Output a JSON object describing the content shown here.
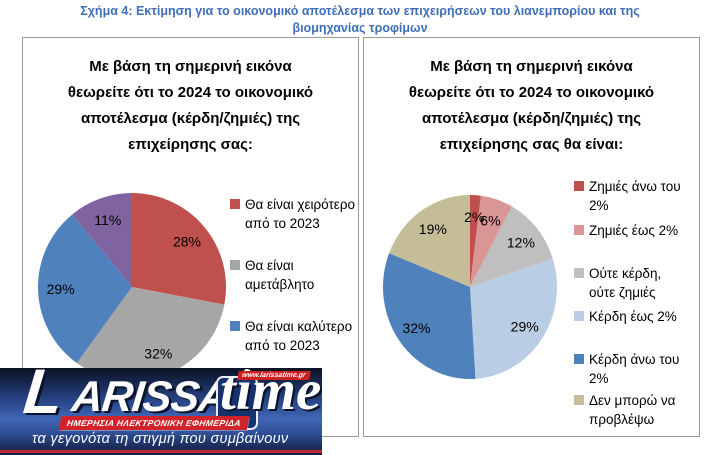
{
  "page_title_lines": [
    "Σχήμα 4: Εκτίμηση για το οικονομικό αποτέλεσμα των επιχειρήσεων του λιανεμπορίου και της",
    "βιομηχανίας τροφίμων"
  ],
  "colors": {
    "title_blue": "#3e6eb8",
    "panel_border": "#999999"
  },
  "chart_data": [
    {
      "type": "pie",
      "question_lines": [
        "Με βάση τη σημερινή εικόνα",
        "θεωρείτε ότι το 2024 το οικονομικό",
        "αποτέλεσμα (κέρδη/ζημιές) της",
        "επιχείρησης σας:"
      ],
      "slices": [
        {
          "display": "28%",
          "value": 28,
          "color": "#C0504D"
        },
        {
          "display": "32%",
          "value": 32,
          "color": "#A6A6A6"
        },
        {
          "display": "29%",
          "value": 29,
          "color": "#4F81BD"
        },
        {
          "display": "11%",
          "value": 11,
          "color": "#8064A2"
        }
      ],
      "legend": [
        {
          "label": "Θα είναι χειρότερο από το 2023",
          "color": "#C0504D"
        },
        {
          "label": "Θα είναι αμετάβλητο",
          "color": "#A6A6A6"
        },
        {
          "label": "Θα είναι καλύτερο από το 2023",
          "color": "#4F81BD"
        }
      ]
    },
    {
      "type": "pie",
      "question_lines": [
        "Με βάση τη σημερινή εικόνα",
        "θεωρείτε ότι το 2024 το οικονομικό",
        "αποτέλεσμα (κέρδη/ζημιές) της",
        "επιχείρησης σας θα είναι:"
      ],
      "slices": [
        {
          "display": "2%",
          "value": 2,
          "color": "#C0504D"
        },
        {
          "display": "6%",
          "value": 6,
          "color": "#D99694"
        },
        {
          "display": "12%",
          "value": 12,
          "color": "#BFBFBF"
        },
        {
          "display": "29%",
          "value": 29,
          "color": "#B9CDE5"
        },
        {
          "display": "32%",
          "value": 32,
          "color": "#4F81BD"
        },
        {
          "display": "19%",
          "value": 19,
          "color": "#C4BD97"
        }
      ],
      "legend": [
        {
          "label": "Ζημιές άνω του 2%",
          "color": "#C0504D"
        },
        {
          "label": "Ζημιές έως 2%",
          "color": "#D99694"
        },
        {
          "label": "Ούτε κέρδη, ούτε ζημιές",
          "color": "#BFBFBF"
        },
        {
          "label": "Κέρδη έως 2%",
          "color": "#B9CDE5"
        },
        {
          "label": "Κέρδη άνω του 2%",
          "color": "#4F81BD"
        },
        {
          "label": "Δεν μπορώ να προβλέψω",
          "color": "#C4BD97"
        }
      ]
    }
  ],
  "logo": {
    "wordmark_initial": "L",
    "wordmark_rest": "ARISSA",
    "wordmark_suffix": "time",
    "url": "www.larissatime.gr",
    "banner": "ΗΜΕΡΗΣΙΑ ΗΛΕΚΤΡΟΝΙΚΗ ΕΦΗΜΕΡΙΔΑ",
    "tagline": "τα γεγονότα τη στιγμή που συμβαίνουν"
  }
}
